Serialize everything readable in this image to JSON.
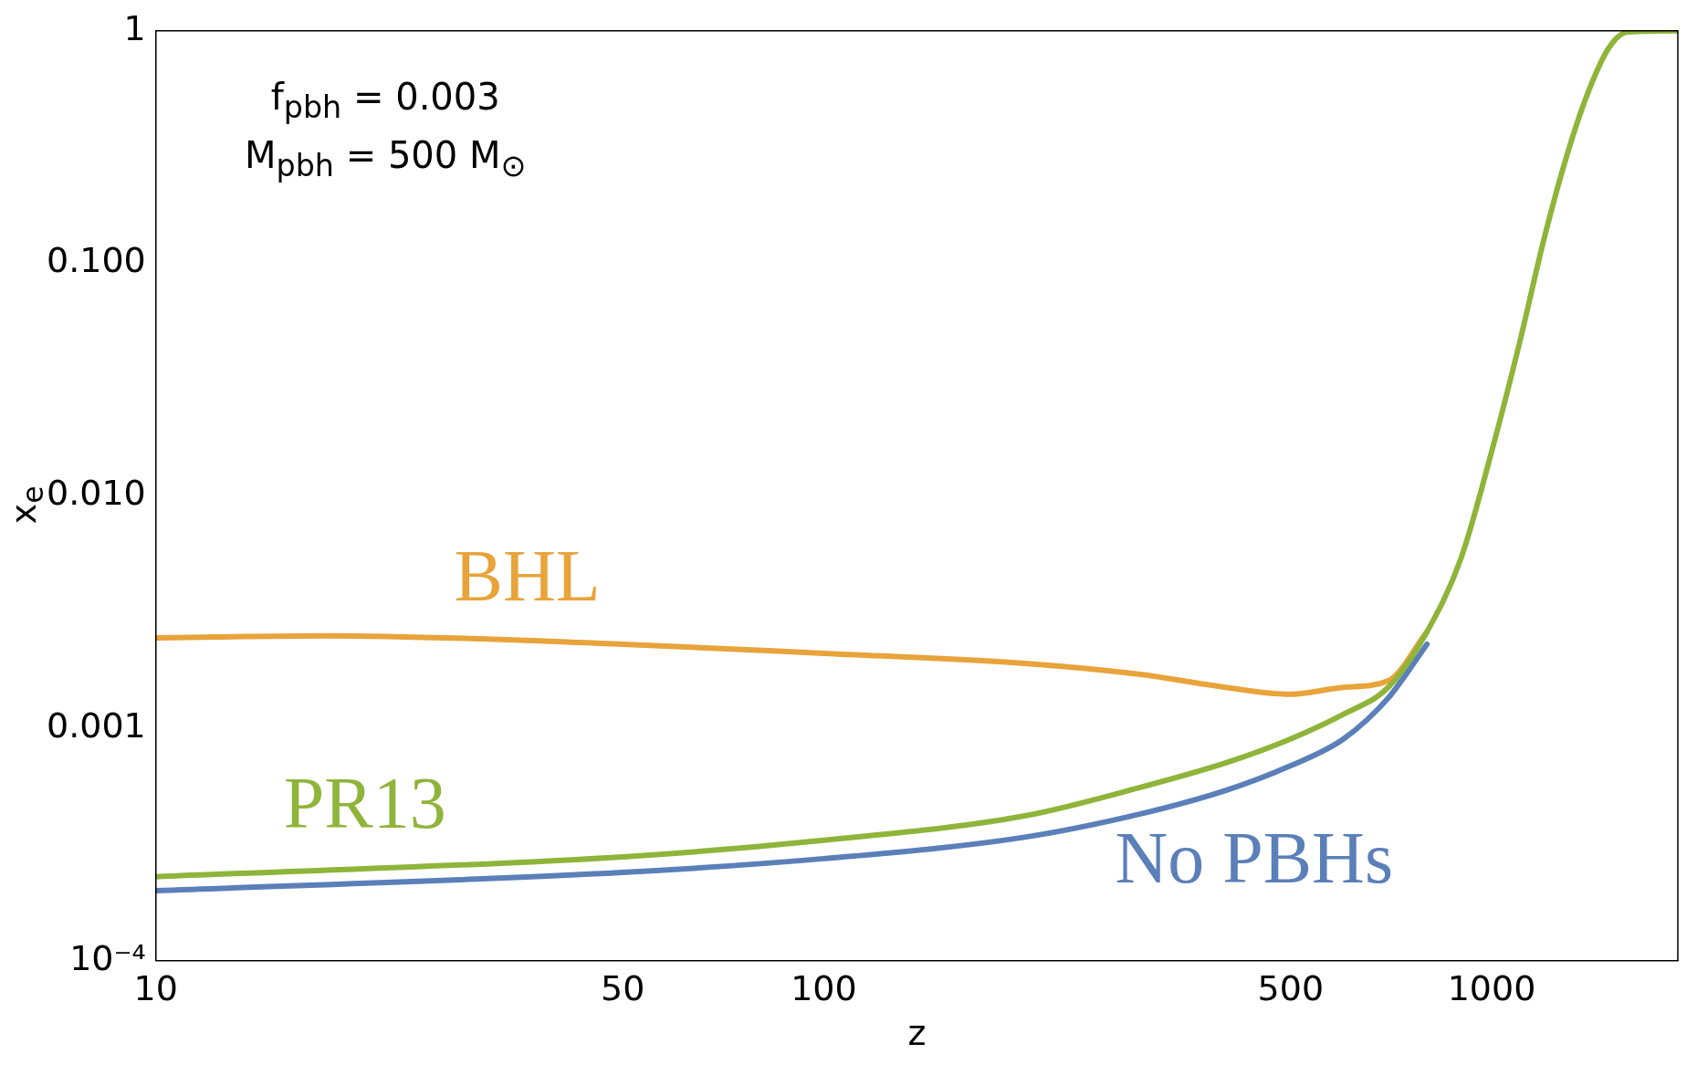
{
  "chart_data": {
    "type": "line",
    "xlabel": "z",
    "ylabel": "x$_{e}$",
    "log": "xy",
    "grid": false,
    "legend": false,
    "marker": "none",
    "line_style": "solid",
    "xlim": [
      10,
      1900
    ],
    "xticks": [
      10,
      50,
      100,
      500,
      1000
    ],
    "ylim": [
      0.0001,
      1
    ],
    "yticks": [
      {
        "value": 0.0001,
        "label": "10⁻⁴"
      },
      {
        "value": 0.001,
        "label": "0.001"
      },
      {
        "value": 0.01,
        "label": "0.010"
      },
      {
        "value": 0.1,
        "label": "0.100"
      },
      {
        "value": 1,
        "label": "1"
      }
    ],
    "annotations": [
      "f$_{pbh}$ = 0.003",
      "M$_{pbh}$ = 500 M$_{⊙}$"
    ],
    "series": [
      {
        "name": "BHL",
        "color": "#e8a33a",
        "x": [
          10,
          18,
          50,
          100,
          200,
          300,
          400,
          500,
          600,
          700,
          800
        ],
        "values": [
          0.00245,
          0.0025,
          0.0023,
          0.0021,
          0.0019,
          0.0017,
          0.0015,
          0.0014,
          0.0015,
          0.0016,
          0.0026
        ]
      },
      {
        "name": "PR13",
        "color": "#8fb43a",
        "x": [
          10,
          50,
          100,
          200,
          300,
          400,
          500,
          600,
          700,
          800,
          900,
          1000,
          1100,
          1200,
          1300,
          1400,
          1500,
          1600,
          1900
        ],
        "values": [
          0.00023,
          0.00028,
          0.00033,
          0.00042,
          0.00056,
          0.00071,
          0.0009,
          0.00115,
          0.0015,
          0.0026,
          0.0054,
          0.0155,
          0.045,
          0.13,
          0.3,
          0.56,
          0.85,
          0.99,
          1
        ]
      },
      {
        "name": "No PBHs",
        "color": "#5b7fb9",
        "x": [
          10,
          50,
          100,
          200,
          300,
          400,
          500,
          600,
          700,
          800
        ],
        "values": [
          0.0002,
          0.00024,
          0.000275,
          0.00034,
          0.00043,
          0.00054,
          0.00069,
          0.0009,
          0.00135,
          0.0023
        ]
      }
    ]
  }
}
